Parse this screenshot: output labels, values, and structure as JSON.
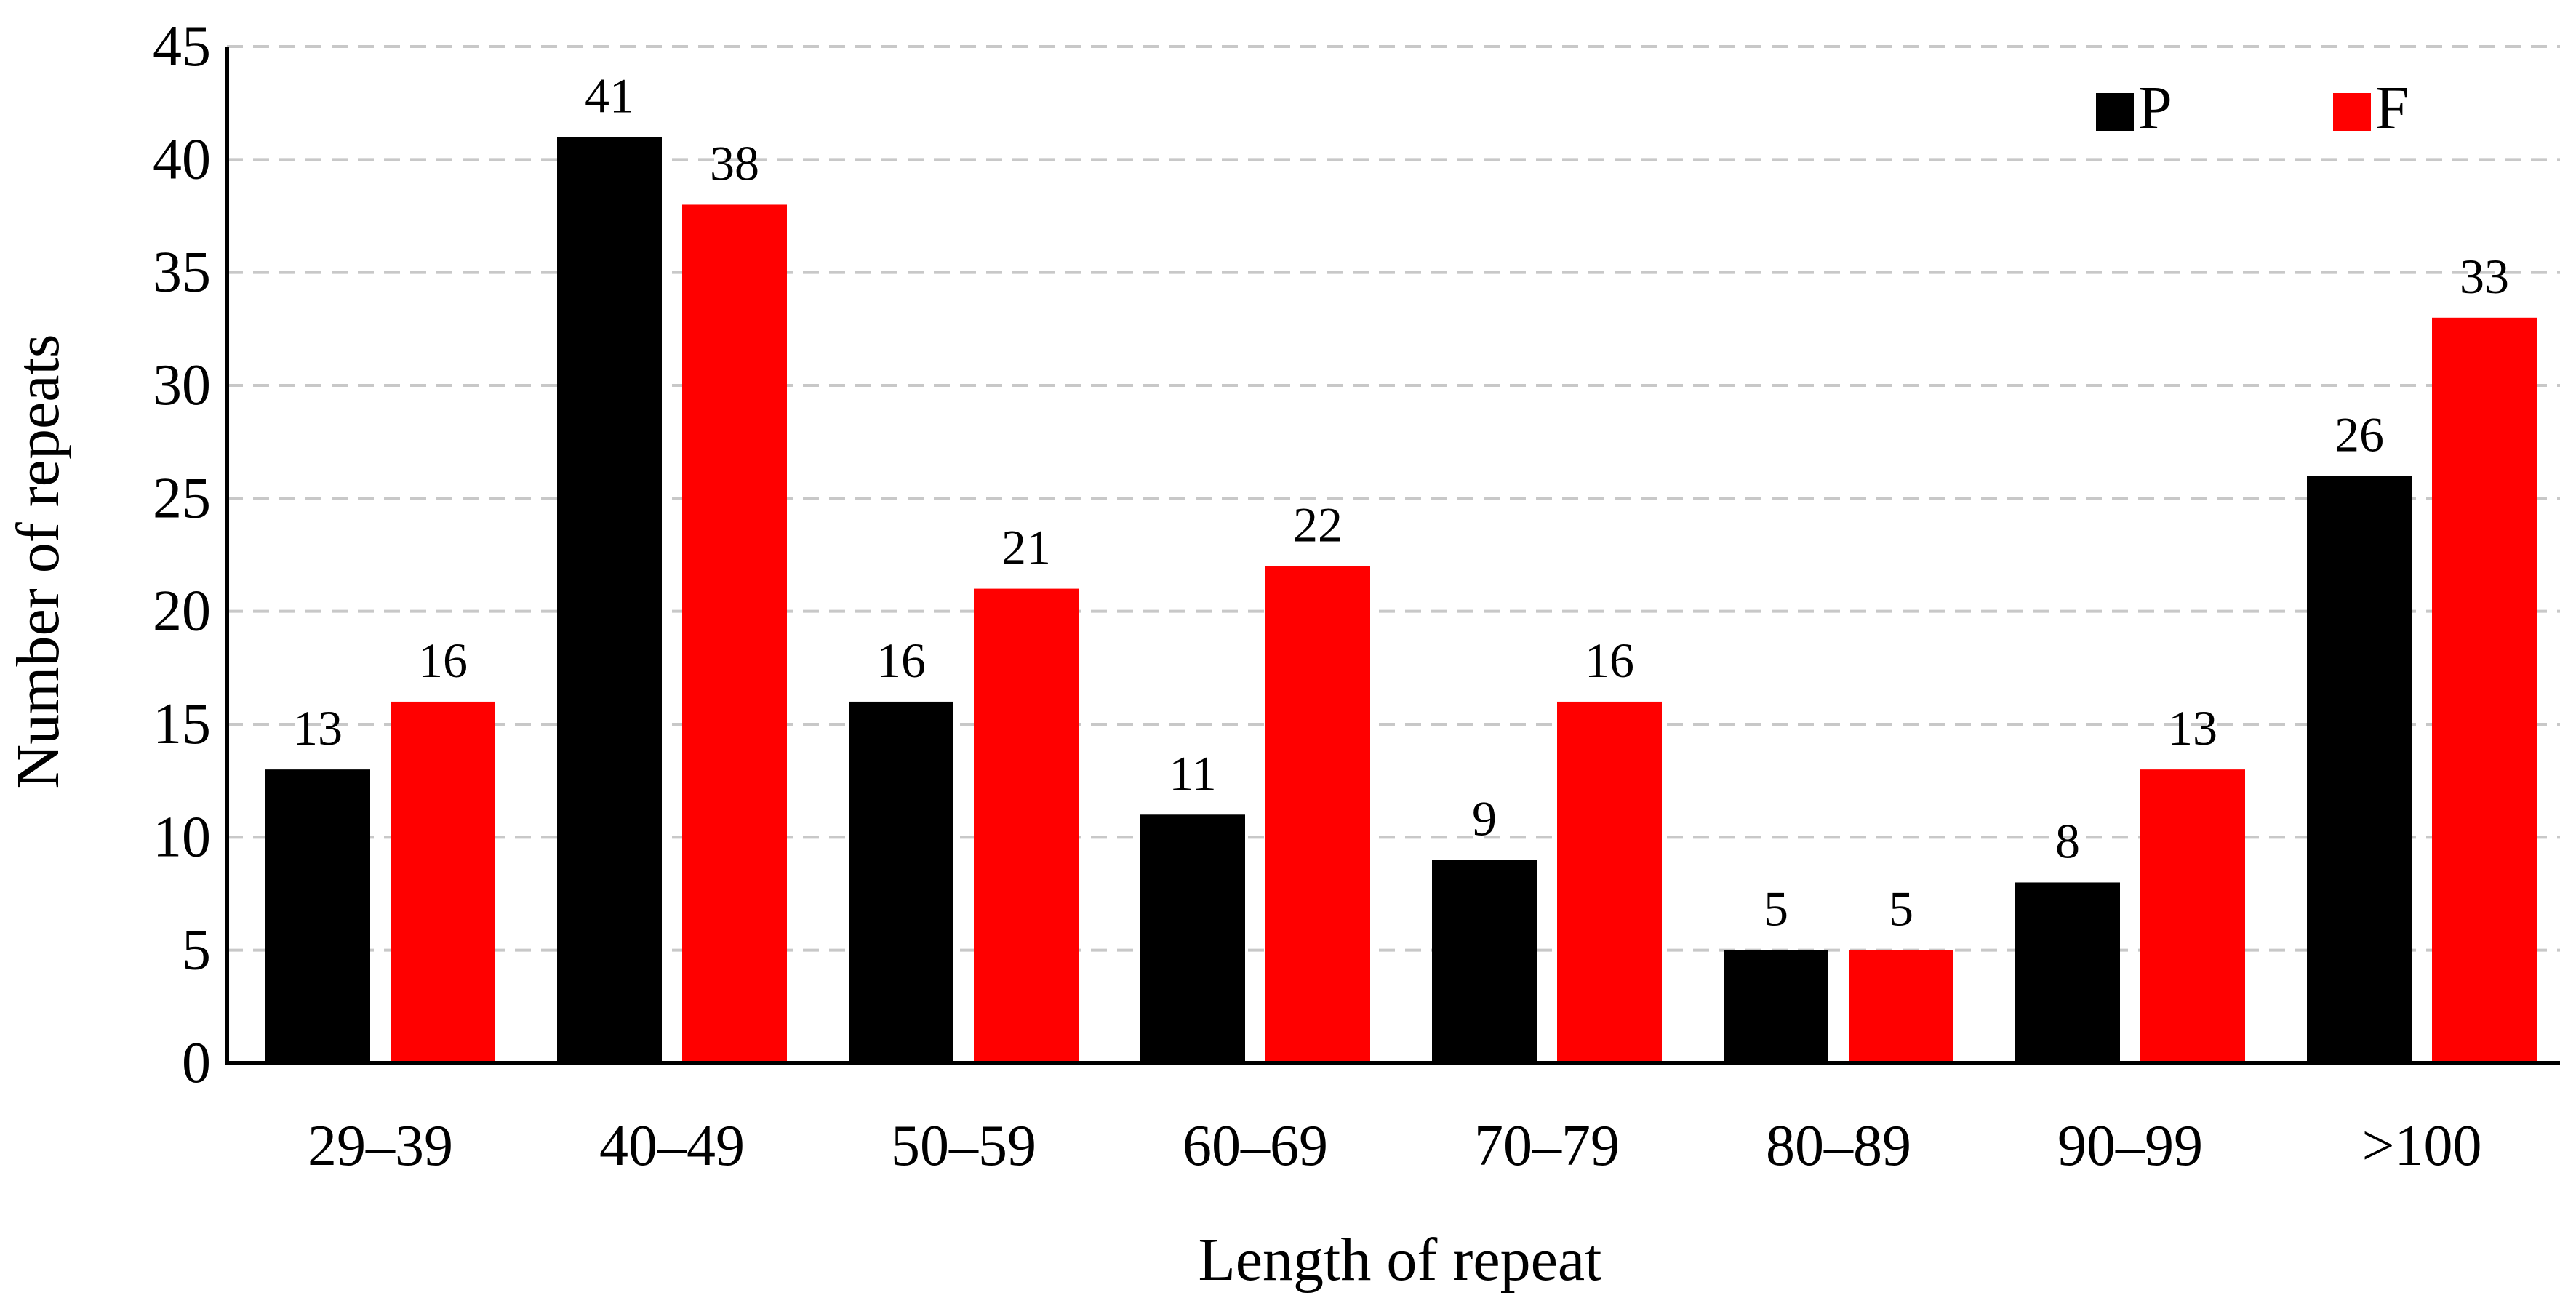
{
  "chart_data": {
    "type": "bar",
    "categories": [
      "29–39",
      "40–49",
      "50–59",
      "60–69",
      "70–79",
      "80–89",
      "90–99",
      ">100"
    ],
    "series": [
      {
        "name": "P",
        "color": "#000000",
        "values": [
          13,
          41,
          16,
          11,
          9,
          5,
          8,
          26
        ]
      },
      {
        "name": "F",
        "color": "#ff0000",
        "values": [
          16,
          38,
          21,
          22,
          16,
          5,
          13,
          33
        ]
      }
    ],
    "title": "",
    "xlabel": "Length of repeat",
    "ylabel": "Number of repeats",
    "ylim": [
      0,
      45
    ],
    "yticks": [
      0,
      5,
      10,
      15,
      20,
      25,
      30,
      35,
      40,
      45
    ],
    "grid": true,
    "legend_position": "top-right",
    "data_labels": true
  }
}
